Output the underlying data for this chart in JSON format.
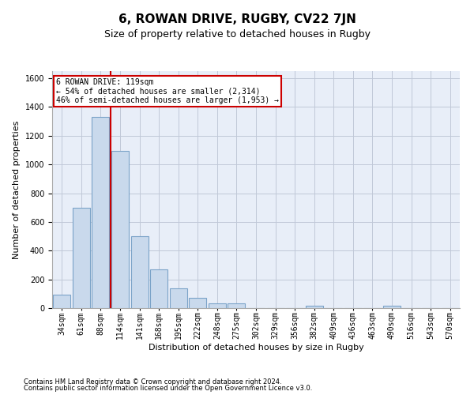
{
  "title": "6, ROWAN DRIVE, RUGBY, CV22 7JN",
  "subtitle": "Size of property relative to detached houses in Rugby",
  "xlabel": "Distribution of detached houses by size in Rugby",
  "ylabel": "Number of detached properties",
  "footnote1": "Contains HM Land Registry data © Crown copyright and database right 2024.",
  "footnote2": "Contains public sector information licensed under the Open Government Licence v3.0.",
  "categories": [
    "34sqm",
    "61sqm",
    "88sqm",
    "114sqm",
    "141sqm",
    "168sqm",
    "195sqm",
    "222sqm",
    "248sqm",
    "275sqm",
    "302sqm",
    "329sqm",
    "356sqm",
    "382sqm",
    "409sqm",
    "436sqm",
    "463sqm",
    "490sqm",
    "516sqm",
    "543sqm",
    "570sqm"
  ],
  "values": [
    95,
    700,
    1330,
    1095,
    500,
    270,
    135,
    73,
    35,
    35,
    0,
    0,
    0,
    15,
    0,
    0,
    0,
    18,
    0,
    0,
    0
  ],
  "bar_color": "#c9d9ec",
  "bar_edge_color": "#7ba3c8",
  "marker_label1": "6 ROWAN DRIVE: 119sqm",
  "marker_label2": "← 54% of detached houses are smaller (2,314)",
  "marker_label3": "46% of semi-detached houses are larger (1,953) →",
  "annotation_box_color": "#ffffff",
  "annotation_box_edge": "#cc0000",
  "red_line_color": "#cc0000",
  "ylim": [
    0,
    1650
  ],
  "yticks": [
    0,
    200,
    400,
    600,
    800,
    1000,
    1200,
    1400,
    1600
  ],
  "grid_color": "#c0c8d8",
  "bg_color": "#e8eef8",
  "title_fontsize": 11,
  "subtitle_fontsize": 9,
  "axis_label_fontsize": 8,
  "tick_fontsize": 7,
  "footnote_fontsize": 6
}
